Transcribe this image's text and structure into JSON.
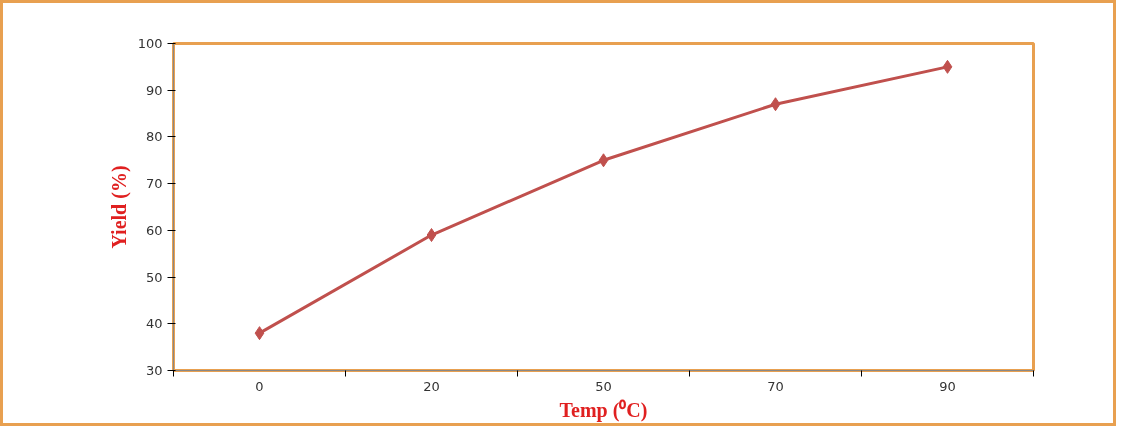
{
  "chart_data": {
    "type": "line",
    "xlabel": "Temp (⁰C)",
    "ylabel": "Yield (%)",
    "categories": [
      "0",
      "20",
      "50",
      "70",
      "90"
    ],
    "series": [
      {
        "color": "#c0504d",
        "values": [
          38,
          59,
          75,
          87,
          95
        ]
      }
    ],
    "ylim": [
      30,
      100
    ],
    "yticks": [
      30,
      40,
      50,
      60,
      70,
      80,
      90,
      100
    ],
    "marker": "diamond",
    "grid": false,
    "line_style": "solid"
  }
}
